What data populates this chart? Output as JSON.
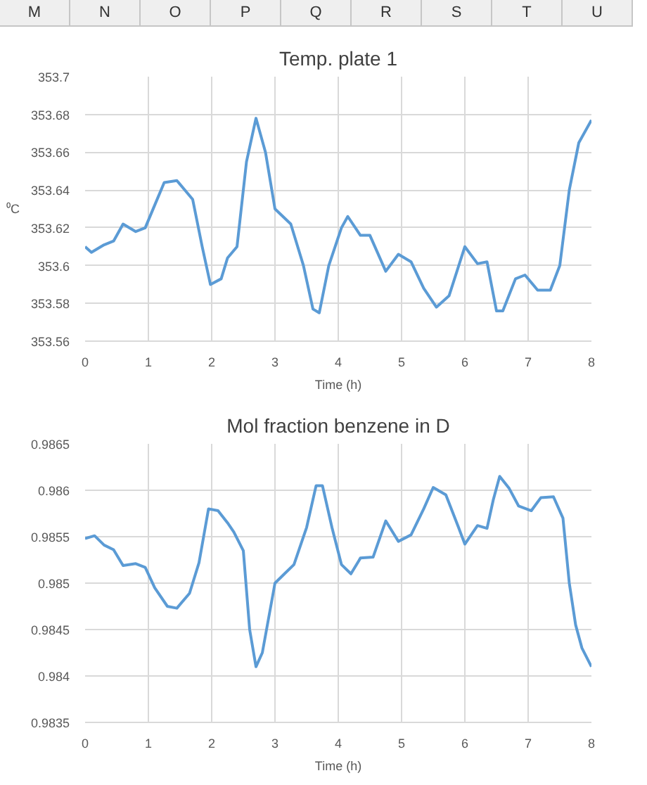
{
  "chart_data": [
    {
      "type": "line",
      "title": "Temp. plate 1",
      "xlabel": "Time (h)",
      "ylabel": "⁰C",
      "annotations": [
        "M",
        "N",
        "O",
        "P",
        "Q",
        "R",
        "S",
        "T",
        "U"
      ],
      "x": [
        0,
        0.1,
        0.3,
        0.45,
        0.6,
        0.8,
        0.95,
        1.1,
        1.25,
        1.45,
        1.7,
        1.85,
        1.98,
        2.15,
        2.25,
        2.4,
        2.55,
        2.7,
        2.85,
        3.0,
        3.25,
        3.45,
        3.6,
        3.7,
        3.85,
        4.05,
        4.15,
        4.35,
        4.5,
        4.75,
        4.95,
        5.15,
        5.35,
        5.55,
        5.75,
        6.0,
        6.2,
        6.35,
        6.5,
        6.6,
        6.8,
        6.95,
        7.15,
        7.35,
        7.5,
        7.65,
        7.8,
        8
      ],
      "series": [
        {
          "color": "#5b9bd5",
          "values": [
            353.61,
            353.607,
            353.611,
            353.613,
            353.622,
            353.618,
            353.62,
            353.632,
            353.644,
            353.645,
            353.635,
            353.61,
            353.59,
            353.593,
            353.604,
            353.61,
            353.655,
            353.678,
            353.66,
            353.63,
            353.622,
            353.6,
            353.577,
            353.575,
            353.6,
            353.62,
            353.626,
            353.616,
            353.616,
            353.597,
            353.606,
            353.602,
            353.588,
            353.578,
            353.584,
            353.61,
            353.601,
            353.602,
            353.576,
            353.576,
            353.593,
            353.595,
            353.587,
            353.587,
            353.6,
            353.64,
            353.665,
            353.677
          ]
        }
      ],
      "xlim": [
        0,
        8
      ],
      "xticks": [
        0,
        1,
        2,
        3,
        4,
        5,
        6,
        7,
        8
      ],
      "ylim": [
        353.56,
        353.7
      ],
      "yticks": [
        353.56,
        353.58,
        353.6,
        353.62,
        353.64,
        353.66,
        353.68,
        353.7
      ],
      "grid": true
    },
    {
      "type": "line",
      "title": "Mol fraction benzene in D",
      "xlabel": "Time (h)",
      "x": [
        0,
        0.15,
        0.3,
        0.45,
        0.6,
        0.8,
        0.95,
        1.1,
        1.3,
        1.45,
        1.65,
        1.8,
        1.95,
        2.1,
        2.25,
        2.35,
        2.5,
        2.6,
        2.7,
        2.8,
        3.0,
        3.15,
        3.3,
        3.5,
        3.65,
        3.75,
        3.9,
        4.05,
        4.2,
        4.35,
        4.55,
        4.75,
        4.95,
        5.15,
        5.35,
        5.5,
        5.7,
        5.9,
        6.0,
        6.2,
        6.35,
        6.45,
        6.55,
        6.7,
        6.85,
        7.05,
        7.2,
        7.4,
        7.55,
        7.65,
        7.75,
        7.85,
        8
      ],
      "series": [
        {
          "color": "#5b9bd5",
          "values": [
            0.98548,
            0.98551,
            0.98541,
            0.98536,
            0.98519,
            0.98521,
            0.98517,
            0.98495,
            0.98475,
            0.98473,
            0.98489,
            0.98522,
            0.9858,
            0.98578,
            0.98565,
            0.98555,
            0.98535,
            0.9845,
            0.9841,
            0.98425,
            0.985,
            0.9851,
            0.9852,
            0.9856,
            0.98605,
            0.98605,
            0.9856,
            0.9852,
            0.9851,
            0.98527,
            0.98528,
            0.98567,
            0.98545,
            0.98552,
            0.9858,
            0.98603,
            0.98595,
            0.9856,
            0.98542,
            0.98562,
            0.98559,
            0.9859,
            0.98615,
            0.98602,
            0.98583,
            0.98578,
            0.98592,
            0.98593,
            0.9857,
            0.985,
            0.98455,
            0.9843,
            0.9841
          ]
        }
      ],
      "xlim": [
        0,
        8
      ],
      "xticks": [
        0,
        1,
        2,
        3,
        4,
        5,
        6,
        7,
        8
      ],
      "ylim": [
        0.9835,
        0.9865
      ],
      "yticks": [
        0.9835,
        0.984,
        0.9845,
        0.985,
        0.9855,
        0.986,
        0.9865
      ],
      "grid": true
    }
  ]
}
